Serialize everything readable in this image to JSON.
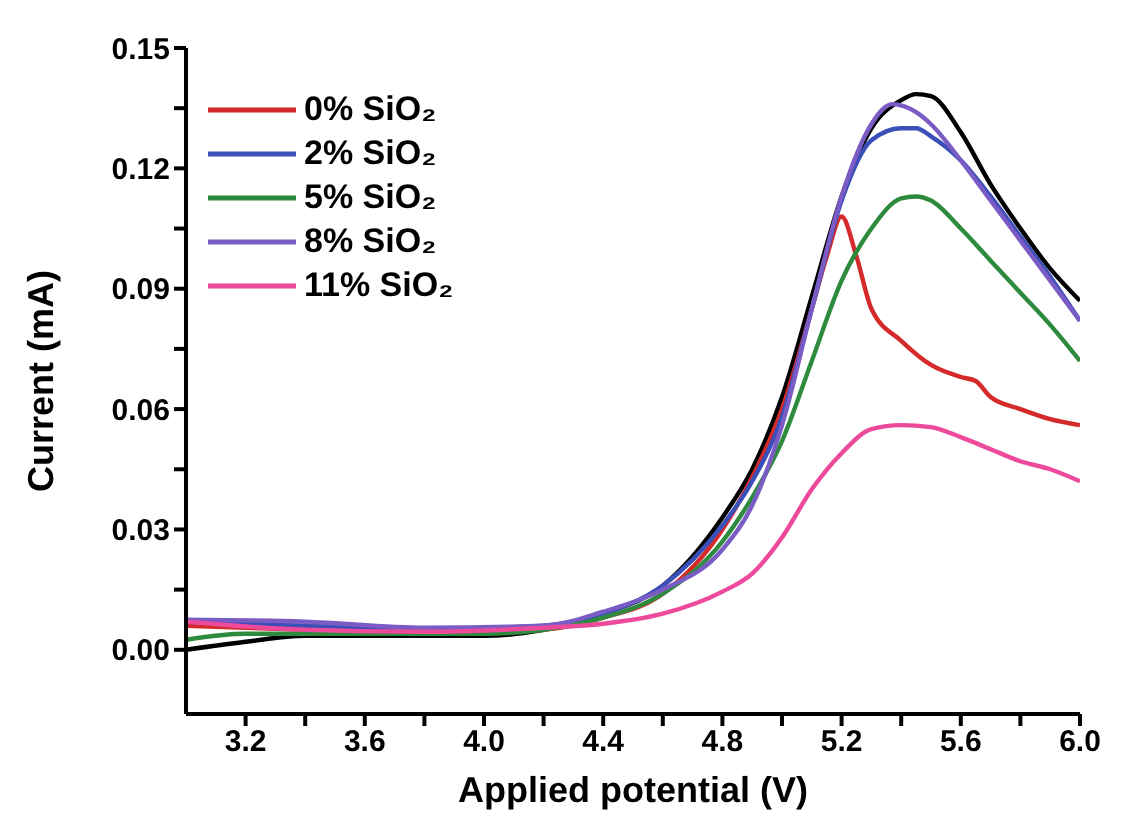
{
  "chart_data": {
    "type": "line",
    "xlabel": "Applied potential (V)",
    "ylabel": "Current (mA)",
    "xlim": [
      3.0,
      6.0
    ],
    "ylim": [
      -0.016,
      0.15
    ],
    "xticks": [
      {
        "value": 3.2,
        "label": "3.2"
      },
      {
        "value": 3.4,
        "label": null
      },
      {
        "value": 3.6,
        "label": "3.6"
      },
      {
        "value": 3.8,
        "label": null
      },
      {
        "value": 4.0,
        "label": "4.0"
      },
      {
        "value": 4.2,
        "label": null
      },
      {
        "value": 4.4,
        "label": "4.4"
      },
      {
        "value": 4.6,
        "label": null
      },
      {
        "value": 4.8,
        "label": "4.8"
      },
      {
        "value": 5.0,
        "label": null
      },
      {
        "value": 5.2,
        "label": "5.2"
      },
      {
        "value": 5.4,
        "label": null
      },
      {
        "value": 5.6,
        "label": "5.6"
      },
      {
        "value": 5.8,
        "label": null
      },
      {
        "value": 6.0,
        "label": "6.0"
      }
    ],
    "yticks": [
      {
        "value": 0,
        "label": "0.00"
      },
      {
        "value": 0.015,
        "label": null
      },
      {
        "value": 0.03,
        "label": "0.03"
      },
      {
        "value": 0.045,
        "label": null
      },
      {
        "value": 0.06,
        "label": "0.06"
      },
      {
        "value": 0.075,
        "label": null
      },
      {
        "value": 0.09,
        "label": "0.09"
      },
      {
        "value": 0.105,
        "label": null
      },
      {
        "value": 0.12,
        "label": "0.12"
      },
      {
        "value": 0.135,
        "label": null
      },
      {
        "value": 0.15,
        "label": "0.15"
      }
    ],
    "grid": false,
    "legend": "top left",
    "marker": "none",
    "line_style": "solid",
    "series": [
      {
        "color": "#000000",
        "x": [
          3.0,
          3.2,
          3.4,
          3.6,
          3.8,
          4.0,
          4.2,
          4.4,
          4.6,
          4.8,
          4.9,
          5.0,
          5.1,
          5.2,
          5.3,
          5.4,
          5.45,
          5.5,
          5.6,
          5.7,
          5.8,
          5.9,
          6.0
        ],
        "values": [
          0.0,
          0.002,
          0.0035,
          0.0035,
          0.0035,
          0.0035,
          0.005,
          0.009,
          0.016,
          0.033,
          0.045,
          0.063,
          0.088,
          0.113,
          0.13,
          0.137,
          0.1385,
          0.138,
          0.129,
          0.116,
          0.105,
          0.095,
          0.087
        ]
      },
      {
        "name": "0% SiO₂",
        "color": "#d42a2a",
        "x": [
          3.0,
          3.4,
          3.8,
          4.2,
          4.4,
          4.6,
          4.8,
          4.9,
          5.0,
          5.1,
          5.15,
          5.2,
          5.25,
          5.3,
          5.4,
          5.5,
          5.6,
          5.65,
          5.7,
          5.8,
          5.9,
          6.0
        ],
        "values": [
          0.006,
          0.005,
          0.004,
          0.005,
          0.008,
          0.014,
          0.03,
          0.043,
          0.06,
          0.085,
          0.098,
          0.108,
          0.098,
          0.085,
          0.077,
          0.071,
          0.068,
          0.067,
          0.063,
          0.06,
          0.0575,
          0.056
        ]
      },
      {
        "name": "2% SiO₂",
        "color": "#3a4fb8",
        "x": [
          3.0,
          3.4,
          3.8,
          4.2,
          4.4,
          4.6,
          4.8,
          4.9,
          5.0,
          5.1,
          5.2,
          5.3,
          5.4,
          5.45,
          5.5,
          5.6,
          5.7,
          5.8,
          5.9,
          6.0
        ],
        "values": [
          0.007,
          0.006,
          0.005,
          0.006,
          0.009,
          0.016,
          0.031,
          0.042,
          0.058,
          0.085,
          0.112,
          0.127,
          0.13,
          0.13,
          0.128,
          0.122,
          0.113,
          0.103,
          0.093,
          0.082
        ]
      },
      {
        "name": "5% SiO₂",
        "color": "#2e8b3e",
        "x": [
          3.0,
          3.2,
          3.6,
          4.0,
          4.2,
          4.4,
          4.6,
          4.8,
          4.9,
          5.0,
          5.1,
          5.2,
          5.3,
          5.4,
          5.45,
          5.5,
          5.6,
          5.7,
          5.8,
          5.9,
          6.0
        ],
        "values": [
          0.0025,
          0.004,
          0.004,
          0.004,
          0.005,
          0.008,
          0.014,
          0.027,
          0.038,
          0.052,
          0.072,
          0.092,
          0.105,
          0.1125,
          0.113,
          0.112,
          0.105,
          0.097,
          0.089,
          0.081,
          0.072
        ]
      },
      {
        "name": "8% SiO₂",
        "color": "#7a5cc4",
        "x": [
          3.0,
          3.4,
          3.8,
          4.2,
          4.4,
          4.6,
          4.8,
          4.9,
          5.0,
          5.1,
          5.2,
          5.3,
          5.37,
          5.45,
          5.5,
          5.6,
          5.7,
          5.8,
          5.9,
          6.0
        ],
        "values": [
          0.0075,
          0.007,
          0.0055,
          0.006,
          0.0095,
          0.015,
          0.025,
          0.036,
          0.056,
          0.085,
          0.113,
          0.131,
          0.136,
          0.134,
          0.131,
          0.122,
          0.112,
          0.102,
          0.092,
          0.082
        ]
      },
      {
        "name": "11% SiO₂",
        "color": "#ee4a9c",
        "x": [
          3.0,
          3.4,
          3.8,
          4.2,
          4.4,
          4.6,
          4.8,
          4.9,
          5.0,
          5.1,
          5.2,
          5.3,
          5.4,
          5.5,
          5.6,
          5.7,
          5.8,
          5.9,
          6.0
        ],
        "values": [
          0.007,
          0.005,
          0.0045,
          0.0055,
          0.0065,
          0.009,
          0.0145,
          0.019,
          0.028,
          0.04,
          0.049,
          0.055,
          0.056,
          0.0555,
          0.053,
          0.05,
          0.047,
          0.045,
          0.042
        ]
      }
    ]
  }
}
